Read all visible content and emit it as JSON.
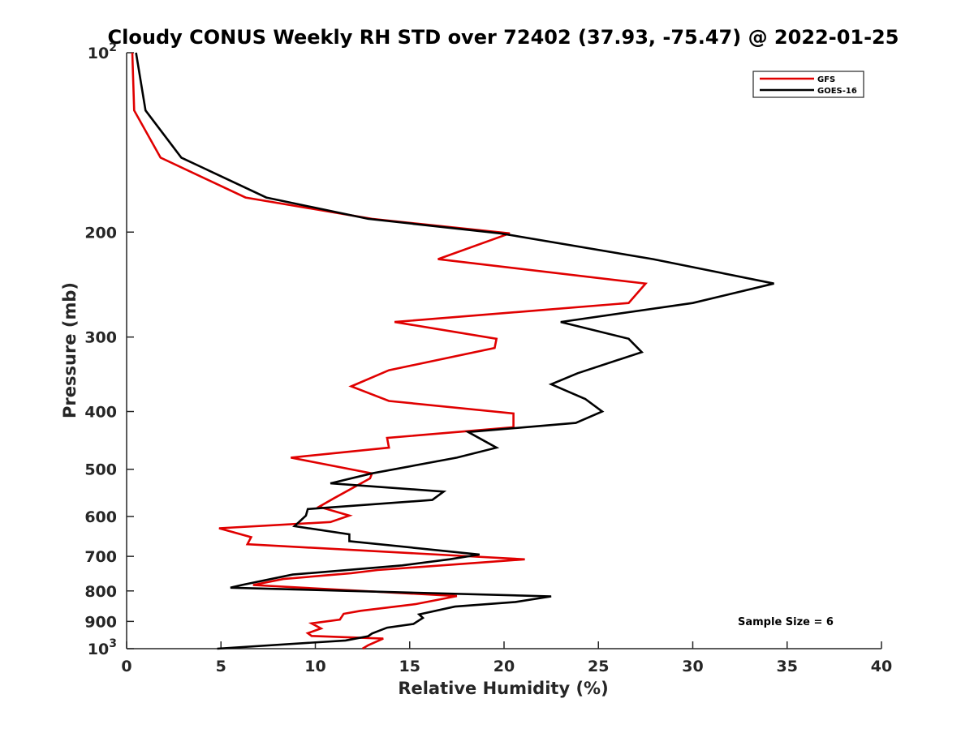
{
  "chart_data": {
    "type": "line",
    "title": "Cloudy CONUS Weekly RH STD over 72402 (37.93, -75.47) @ 2022-01-25",
    "xlabel": "Relative Humidity (%)",
    "ylabel": "Pressure (mb)",
    "xlim": [
      0,
      40
    ],
    "ylim": [
      100,
      1000
    ],
    "y_scale": "log",
    "y_reversed": true,
    "grid": false,
    "legend_position": "top-right",
    "x_ticks": [
      "0",
      "5",
      "10",
      "15",
      "20",
      "25",
      "30",
      "35",
      "40"
    ],
    "y_ticks": [
      {
        "value": 100,
        "base": "10",
        "exp": "2"
      },
      {
        "value": 200,
        "label": "200"
      },
      {
        "value": 300,
        "label": "300"
      },
      {
        "value": 400,
        "label": "400"
      },
      {
        "value": 500,
        "label": "500"
      },
      {
        "value": 600,
        "label": "600"
      },
      {
        "value": 700,
        "label": "700"
      },
      {
        "value": 800,
        "label": "800"
      },
      {
        "value": 900,
        "label": "900"
      },
      {
        "value": 1000,
        "base": "10",
        "exp": "3"
      }
    ],
    "annotation": "Sample Size = 6",
    "series": [
      {
        "name": "GFS",
        "color": "#e00000",
        "points": [
          [
            0.3,
            100
          ],
          [
            0.4,
            125
          ],
          [
            1.8,
            150
          ],
          [
            6.3,
            175
          ],
          [
            13.0,
            190
          ],
          [
            20.3,
            201
          ],
          [
            16.5,
            222
          ],
          [
            27.5,
            244
          ],
          [
            26.6,
            263
          ],
          [
            14.2,
            283
          ],
          [
            19.6,
            302
          ],
          [
            19.5,
            313
          ],
          [
            13.9,
            341
          ],
          [
            11.9,
            363
          ],
          [
            13.9,
            384
          ],
          [
            20.5,
            403
          ],
          [
            20.5,
            425
          ],
          [
            13.8,
            443
          ],
          [
            13.9,
            460
          ],
          [
            8.7,
            478
          ],
          [
            13.0,
            508
          ],
          [
            12.9,
            518
          ],
          [
            11.0,
            559
          ],
          [
            10.2,
            578
          ],
          [
            11.8,
            598
          ],
          [
            10.8,
            613
          ],
          [
            4.9,
            628
          ],
          [
            6.6,
            650
          ],
          [
            6.4,
            668
          ],
          [
            21.1,
            708
          ],
          [
            13.3,
            738
          ],
          [
            11.9,
            747
          ],
          [
            8.3,
            764
          ],
          [
            6.7,
            782
          ],
          [
            17.5,
            816
          ],
          [
            15.3,
            842
          ],
          [
            12.4,
            864
          ],
          [
            11.5,
            874
          ],
          [
            11.3,
            894
          ],
          [
            9.8,
            907
          ],
          [
            10.3,
            925
          ],
          [
            9.6,
            942
          ],
          [
            9.8,
            952
          ],
          [
            13.6,
            962
          ],
          [
            12.8,
            987
          ],
          [
            12.5,
            1000
          ]
        ]
      },
      {
        "name": "GOES-16",
        "color": "#000000",
        "points": [
          [
            0.5,
            100
          ],
          [
            1.0,
            125
          ],
          [
            2.9,
            150
          ],
          [
            7.4,
            175
          ],
          [
            12.8,
            190
          ],
          [
            19.8,
            201
          ],
          [
            27.9,
            222
          ],
          [
            34.3,
            244
          ],
          [
            30.0,
            263
          ],
          [
            23.0,
            283
          ],
          [
            26.6,
            302
          ],
          [
            27.3,
            318
          ],
          [
            23.9,
            345
          ],
          [
            22.5,
            360
          ],
          [
            24.3,
            381
          ],
          [
            25.2,
            400
          ],
          [
            23.8,
            418
          ],
          [
            18.1,
            433
          ],
          [
            19.6,
            460
          ],
          [
            17.5,
            478
          ],
          [
            13.0,
            508
          ],
          [
            10.8,
            528
          ],
          [
            16.8,
            545
          ],
          [
            16.2,
            563
          ],
          [
            9.6,
            583
          ],
          [
            9.5,
            598
          ],
          [
            8.9,
            623
          ],
          [
            11.8,
            643
          ],
          [
            11.8,
            660
          ],
          [
            18.7,
            695
          ],
          [
            17.1,
            708
          ],
          [
            14.6,
            725
          ],
          [
            8.8,
            751
          ],
          [
            6.1,
            782
          ],
          [
            5.5,
            790
          ],
          [
            22.5,
            817
          ],
          [
            20.6,
            835
          ],
          [
            17.4,
            850
          ],
          [
            15.5,
            876
          ],
          [
            15.7,
            888
          ],
          [
            15.2,
            909
          ],
          [
            13.8,
            922
          ],
          [
            13.0,
            943
          ],
          [
            12.8,
            953
          ],
          [
            11.6,
            969
          ],
          [
            4.8,
            1000
          ]
        ]
      }
    ]
  }
}
